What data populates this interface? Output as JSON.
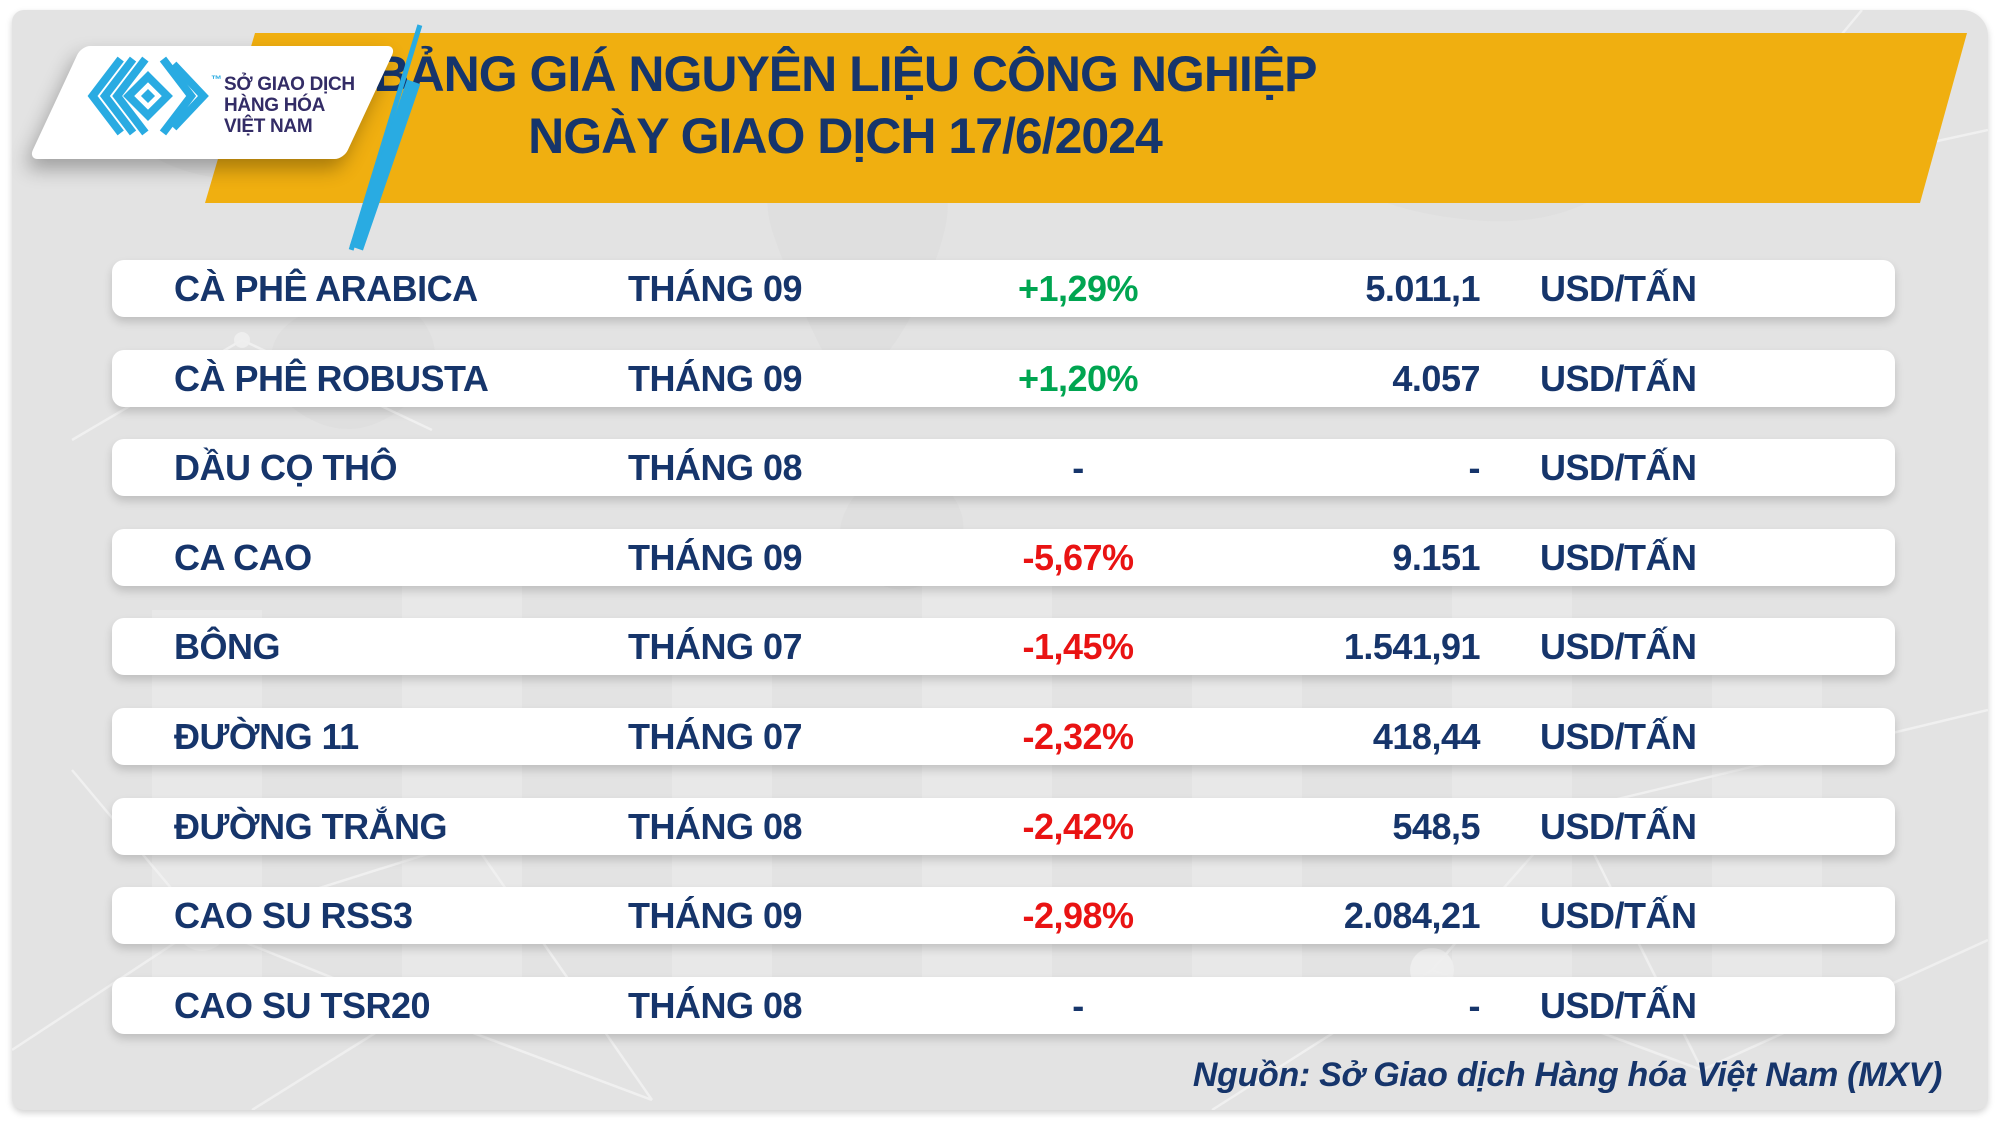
{
  "logo": {
    "org_lines": [
      "SỞ GIAO DỊCH",
      "HÀNG HÓA",
      "VIỆT NAM"
    ],
    "trademark": "™"
  },
  "header": {
    "title_line1": "BẢNG GIÁ NGUYÊN LIỆU CÔNG NGHIỆP",
    "title_line2": "NGÀY GIAO DỊCH 17/6/2024"
  },
  "chart_data": {
    "type": "table",
    "title": "BẢNG GIÁ NGUYÊN LIỆU CÔNG NGHIỆP NGÀY GIAO DỊCH 17/6/2024",
    "rows": [
      {
        "name": "CÀ PHÊ ARABICA",
        "month": "THÁNG 09",
        "change": "+1,29%",
        "direction": "up",
        "price": "5.011,1",
        "unit": "USD/TẤN"
      },
      {
        "name": "CÀ PHÊ ROBUSTA",
        "month": "THÁNG 09",
        "change": "+1,20%",
        "direction": "up",
        "price": "4.057",
        "unit": "USD/TẤN"
      },
      {
        "name": "DẦU CỌ THÔ",
        "month": "THÁNG 08",
        "change": "-",
        "direction": "flat",
        "price": "-",
        "unit": "USD/TẤN"
      },
      {
        "name": "CA CAO",
        "month": "THÁNG 09",
        "change": "-5,67%",
        "direction": "down",
        "price": "9.151",
        "unit": "USD/TẤN"
      },
      {
        "name": "BÔNG",
        "month": "THÁNG 07",
        "change": "-1,45%",
        "direction": "down",
        "price": "1.541,91",
        "unit": "USD/TẤN"
      },
      {
        "name": "ĐƯỜNG 11",
        "month": "THÁNG 07",
        "change": "-2,32%",
        "direction": "down",
        "price": "418,44",
        "unit": "USD/TẤN"
      },
      {
        "name": "ĐƯỜNG TRẮNG",
        "month": "THÁNG 08",
        "change": "-2,42%",
        "direction": "down",
        "price": "548,5",
        "unit": "USD/TẤN"
      },
      {
        "name": "CAO SU RSS3",
        "month": "THÁNG 09",
        "change": "-2,98%",
        "direction": "down",
        "price": "2.084,21",
        "unit": "USD/TẤN"
      },
      {
        "name": "CAO SU TSR20",
        "month": "THÁNG 08",
        "change": "-",
        "direction": "flat",
        "price": "-",
        "unit": "USD/TẤN"
      }
    ]
  },
  "footer": {
    "source": "Nguồn: Sở Giao dịch Hàng hóa Việt Nam (MXV)"
  },
  "colors": {
    "navy": "#16356B",
    "green": "#00A551",
    "red": "#E91313",
    "banner_yellow": "#F0AF10",
    "logo_cyan": "#29ABE2",
    "logo_text_purple": "#332C66",
    "panel_gray": "#E3E3E3"
  }
}
